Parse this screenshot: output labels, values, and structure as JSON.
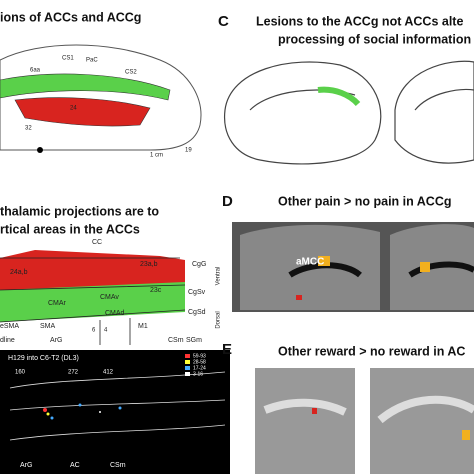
{
  "panels": {
    "A": {
      "title": "ions of ACCs and ACCg",
      "labels": [
        "6aa",
        "CS1",
        "PaC",
        "CS2",
        "24",
        "32",
        "1 cm",
        "19"
      ]
    },
    "B": {
      "title_lines": [
        "thalamic projections are to",
        "rtical areas in the ACCs"
      ],
      "labels": [
        "CC",
        "CgG",
        "24a,b",
        "23a,b",
        "23c",
        "Ventral",
        "CMAv",
        "CgSv",
        "CMAr",
        "Dorsal",
        "CMAd",
        "CgSd",
        "eSMA",
        "SMA",
        "M1",
        "6",
        "4",
        "SGm",
        "dline",
        "ArG",
        "CSm"
      ],
      "inset": {
        "title": "H129 into C6-T2 (DL3)",
        "legend": [
          "59-93",
          "28-58",
          "17-24",
          "3-16"
        ],
        "sections": [
          "160",
          "272",
          "412"
        ],
        "bottom_labels": [
          "ArG",
          "AC",
          "CSm"
        ]
      }
    },
    "C": {
      "letter": "C",
      "title_lines": [
        "Lesions to the ACCg not ACCs alte",
        "processing of social information"
      ]
    },
    "D": {
      "letter": "D",
      "title": "Other pain > no pain in ACCg",
      "label": "aMCC"
    },
    "E": {
      "letter": "E",
      "title": "Other reward > no reward in AC"
    }
  }
}
